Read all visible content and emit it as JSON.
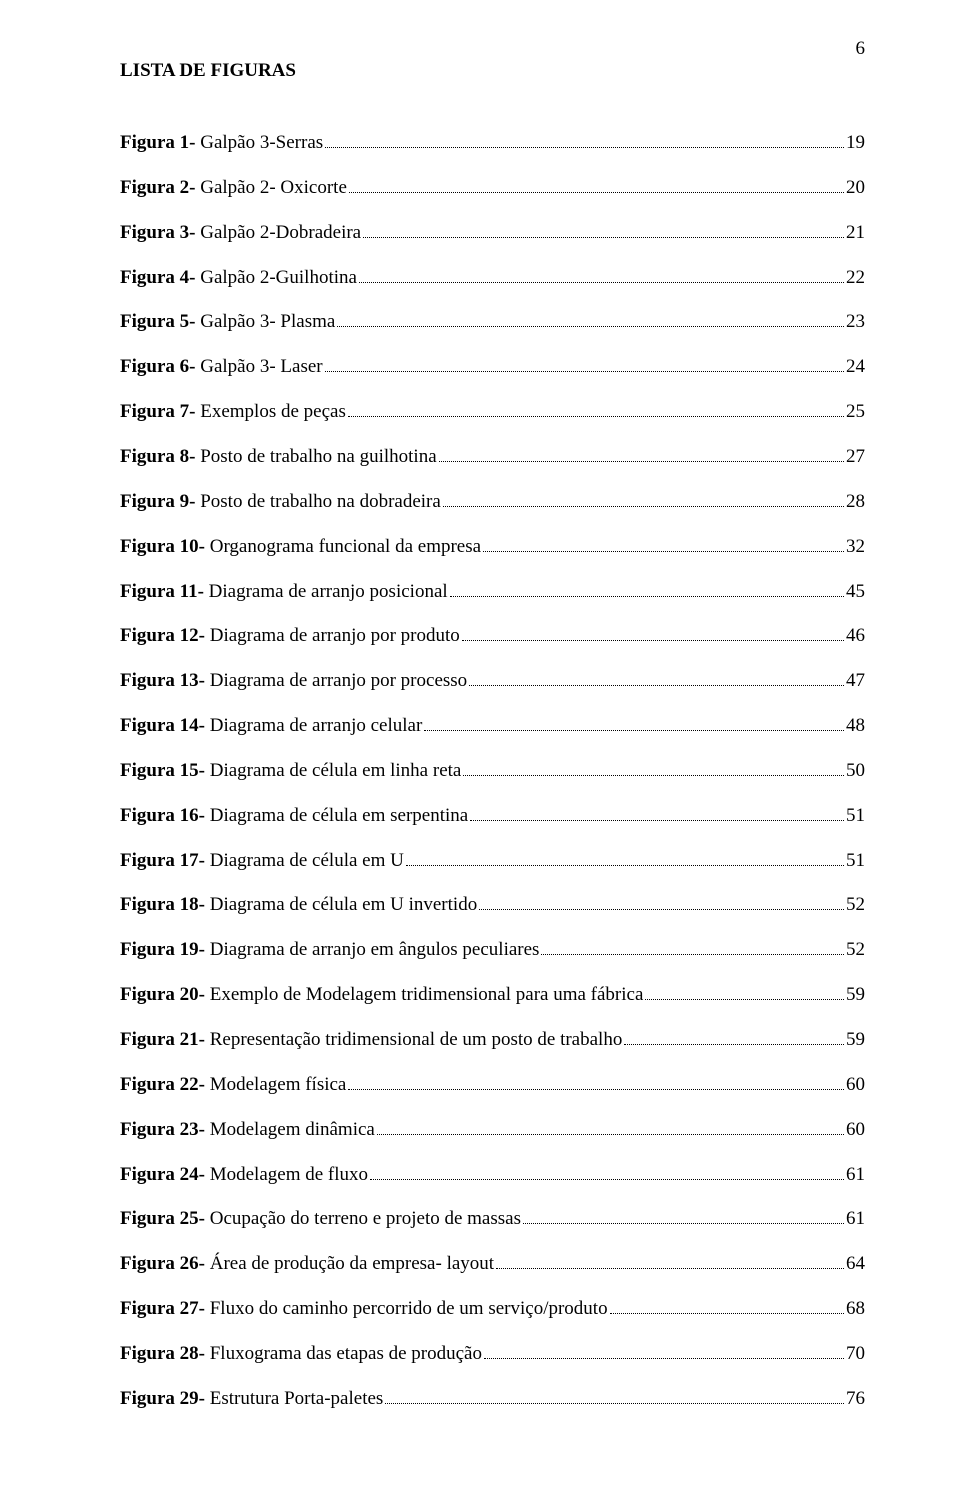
{
  "page_number": "6",
  "heading": "LISTA DE FIGURAS",
  "entries": [
    {
      "label": "Figura 1- ",
      "text": "Galpão 3-Serras",
      "page": "19"
    },
    {
      "label": "Figura 2- ",
      "text": "Galpão 2- Oxicorte",
      "page": "20"
    },
    {
      "label": "Figura 3- ",
      "text": "Galpão 2-Dobradeira",
      "page": "21"
    },
    {
      "label": "Figura 4- ",
      "text": "Galpão 2-Guilhotina",
      "page": "22"
    },
    {
      "label": "Figura 5- ",
      "text": "Galpão 3- Plasma",
      "page": "23"
    },
    {
      "label": "Figura 6- ",
      "text": "Galpão 3- Laser",
      "page": "24"
    },
    {
      "label": "Figura 7- ",
      "text": "Exemplos de peças",
      "page": "25"
    },
    {
      "label": "Figura 8- ",
      "text": "Posto de trabalho na guilhotina",
      "page": "27"
    },
    {
      "label": "Figura 9- ",
      "text": "Posto de trabalho na dobradeira",
      "page": "28"
    },
    {
      "label": "Figura 10- ",
      "text": "Organograma funcional da empresa",
      "page": "32"
    },
    {
      "label": "Figura 11- ",
      "text": "Diagrama de arranjo posicional",
      "page": "45"
    },
    {
      "label": "Figura 12- ",
      "text": "Diagrama de arranjo por produto",
      "page": "46"
    },
    {
      "label": "Figura 13- ",
      "text": "Diagrama de arranjo por processo",
      "page": "47"
    },
    {
      "label": "Figura 14- ",
      "text": "Diagrama de arranjo celular",
      "page": "48"
    },
    {
      "label": "Figura 15- ",
      "text": "Diagrama de célula em linha reta",
      "page": "50"
    },
    {
      "label": "Figura 16- ",
      "text": "Diagrama de célula em serpentina",
      "page": "51"
    },
    {
      "label": "Figura 17- ",
      "text": "Diagrama de célula em U",
      "page": "51"
    },
    {
      "label": "Figura 18- ",
      "text": "Diagrama de célula em U invertido",
      "page": "52"
    },
    {
      "label": "Figura 19- ",
      "text": "Diagrama de arranjo em ângulos peculiares",
      "page": "52"
    },
    {
      "label": "Figura 20- ",
      "text": "Exemplo de Modelagem tridimensional para uma fábrica",
      "page": "59"
    },
    {
      "label": "Figura 21- ",
      "text": "Representação tridimensional de um posto de trabalho",
      "page": "59"
    },
    {
      "label": "Figura 22- ",
      "text": "Modelagem física",
      "page": "60"
    },
    {
      "label": "Figura 23- ",
      "text": "Modelagem dinâmica",
      "page": "60"
    },
    {
      "label": "Figura 24- ",
      "text": "Modelagem de fluxo",
      "page": "61"
    },
    {
      "label": "Figura 25- ",
      "text": "Ocupação do terreno e projeto de massas",
      "page": "61"
    },
    {
      "label": "Figura 26- ",
      "text": "Área de produção da empresa- layout",
      "page": "64"
    },
    {
      "label": "Figura 27- ",
      "text": "Fluxo do caminho percorrido de um serviço/produto",
      "page": "68"
    },
    {
      "label": "Figura 28- ",
      "text": "Fluxograma das etapas de produção",
      "page": "70"
    },
    {
      "label": "Figura 29- ",
      "text": "Estrutura Porta-paletes",
      "page": "76"
    }
  ]
}
